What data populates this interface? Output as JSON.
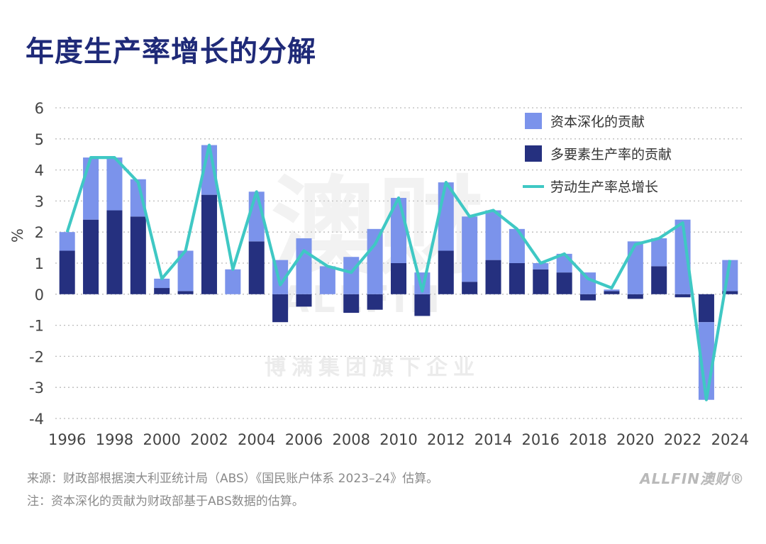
{
  "title": "年度生产率增长的分解",
  "colors": {
    "capital_deepening": "#7b93eb",
    "mfp": "#25307f",
    "labour_productivity": "#3fc8c4",
    "title": "#1f2a78",
    "grid": "#bbbbbb"
  },
  "chart_data": {
    "type": "bar",
    "stacked": true,
    "x": [
      1996,
      1997,
      1998,
      1999,
      2000,
      2001,
      2002,
      2003,
      2004,
      2005,
      2006,
      2007,
      2008,
      2009,
      2010,
      2011,
      2012,
      2013,
      2014,
      2015,
      2016,
      2017,
      2018,
      2019,
      2020,
      2021,
      2022,
      2023,
      2024
    ],
    "x_tick_labels": [
      "1996",
      "1998",
      "2000",
      "2002",
      "2004",
      "2006",
      "2008",
      "2010",
      "2012",
      "2014",
      "2016",
      "2018",
      "2020",
      "2022",
      "2024"
    ],
    "ylabel": "%",
    "ylim": [
      -4,
      6
    ],
    "y_ticks": [
      "6",
      "5",
      "4",
      "3",
      "2",
      "1",
      "0",
      "-1",
      "-2",
      "-3",
      "-4"
    ],
    "grid": true,
    "legend_position": "top-right",
    "series": [
      {
        "name": "资本深化的贡献",
        "type": "bar",
        "color": "#7b93eb",
        "values": [
          0.6,
          2.0,
          1.7,
          1.2,
          0.3,
          1.3,
          1.6,
          0.8,
          1.6,
          1.1,
          1.8,
          0.9,
          1.2,
          2.1,
          2.1,
          0.7,
          2.2,
          2.1,
          1.6,
          1.1,
          0.2,
          0.6,
          0.7,
          0.05,
          1.7,
          0.9,
          2.4,
          -2.5,
          1.0
        ]
      },
      {
        "name": "多要素生产率的贡献",
        "type": "bar",
        "color": "#25307f",
        "values": [
          1.4,
          2.4,
          2.7,
          2.5,
          0.2,
          0.1,
          3.2,
          0.0,
          1.7,
          -0.9,
          -0.4,
          0.0,
          -0.6,
          -0.5,
          1.0,
          -0.7,
          1.4,
          0.4,
          1.1,
          1.0,
          0.8,
          0.7,
          -0.2,
          0.1,
          -0.15,
          0.9,
          -0.1,
          -0.9,
          0.1
        ]
      },
      {
        "name": "劳动生产率总增长",
        "type": "line",
        "color": "#3fc8c4",
        "values": [
          2.0,
          4.4,
          4.4,
          3.6,
          0.5,
          1.4,
          4.8,
          0.8,
          3.3,
          0.3,
          1.4,
          0.9,
          0.7,
          1.6,
          3.1,
          0.1,
          3.6,
          2.5,
          2.7,
          2.1,
          1.0,
          1.3,
          0.5,
          0.2,
          1.6,
          1.8,
          2.3,
          -3.4,
          1.1
        ]
      }
    ]
  },
  "watermark": {
    "main": "澳财",
    "brand": "ALLFIN",
    "tagline": "博满集团旗下企业"
  },
  "source_note": "来源：财政部根据澳大利亚统计局（ABS）《国民账户体系 2023–24》估算。",
  "footnote": "注：资本深化的贡献为财政部基于ABS数据的估算。",
  "logo": "ALLFIN澳财®"
}
